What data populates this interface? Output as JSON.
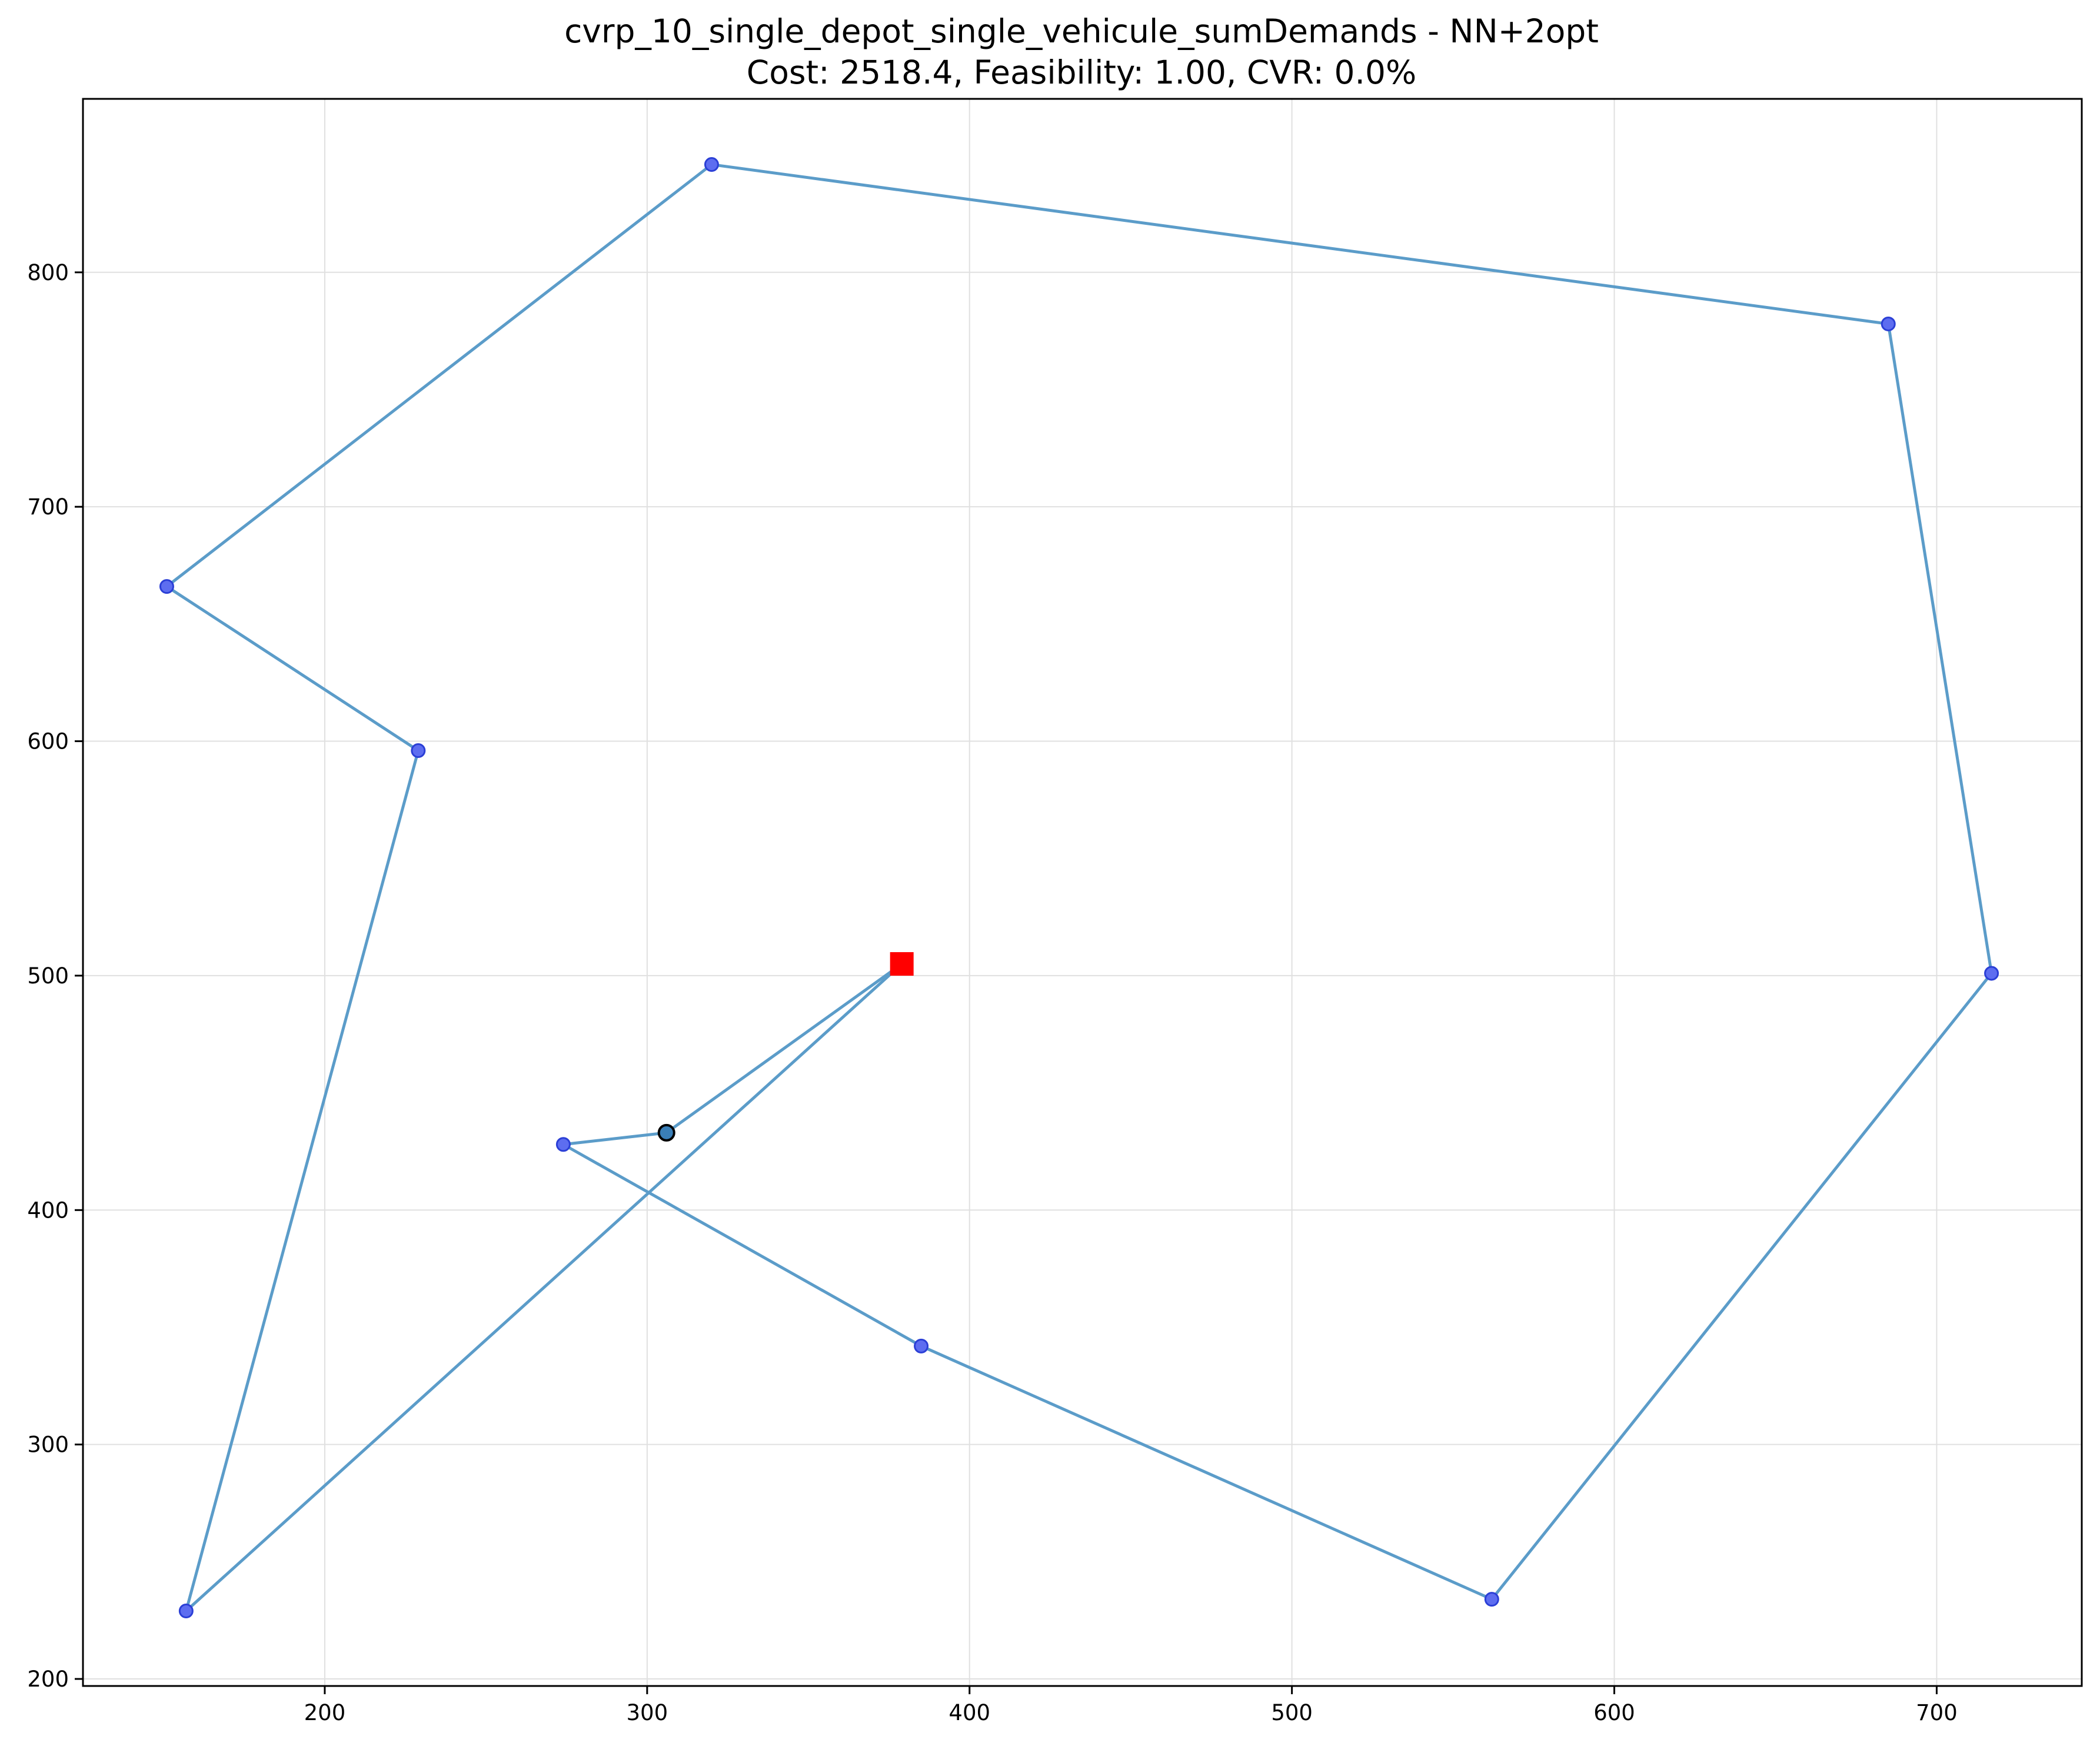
{
  "title": {
    "line1": "cvrp_10_single_depot_single_vehicule_sumDemands - NN+2opt",
    "line2": "Cost: 2518.4, Feasibility: 1.00, CVR: 0.0%"
  },
  "chart_data": {
    "type": "scatter",
    "title": "cvrp_10_single_depot_single_vehicule_sumDemands - NN+2opt",
    "subtitle": "Cost: 2518.4, Feasibility: 1.00, CVR: 0.0%",
    "xlabel": "",
    "ylabel": "",
    "xlim": [
      125,
      745
    ],
    "ylim": [
      197,
      874
    ],
    "xticks": [
      200,
      300,
      400,
      500,
      600,
      700
    ],
    "yticks": [
      200,
      300,
      400,
      500,
      600,
      700,
      800
    ],
    "grid": true,
    "legend": "none",
    "depot": {
      "x": 379,
      "y": 505
    },
    "start_marker": {
      "x": 306,
      "y": 433
    },
    "customers": [
      {
        "x": 306,
        "y": 433
      },
      {
        "x": 274,
        "y": 428
      },
      {
        "x": 385,
        "y": 342
      },
      {
        "x": 562,
        "y": 234
      },
      {
        "x": 717,
        "y": 501
      },
      {
        "x": 685,
        "y": 778
      },
      {
        "x": 320,
        "y": 846
      },
      {
        "x": 151,
        "y": 666
      },
      {
        "x": 229,
        "y": 596
      },
      {
        "x": 157,
        "y": 229
      }
    ],
    "route": [
      {
        "x": 379,
        "y": 505
      },
      {
        "x": 306,
        "y": 433
      },
      {
        "x": 274,
        "y": 428
      },
      {
        "x": 385,
        "y": 342
      },
      {
        "x": 562,
        "y": 234
      },
      {
        "x": 717,
        "y": 501
      },
      {
        "x": 685,
        "y": 778
      },
      {
        "x": 320,
        "y": 846
      },
      {
        "x": 151,
        "y": 666
      },
      {
        "x": 229,
        "y": 596
      },
      {
        "x": 157,
        "y": 229
      },
      {
        "x": 379,
        "y": 505
      }
    ],
    "colors": {
      "route": "#5b9cc9",
      "customer_fill": "#5d6df0",
      "customer_edge": "#2b3fd6",
      "depot": "#ff0000",
      "start_fill": "#3a7fb8",
      "start_edge": "#000000",
      "grid": "#e0e0e0"
    }
  }
}
